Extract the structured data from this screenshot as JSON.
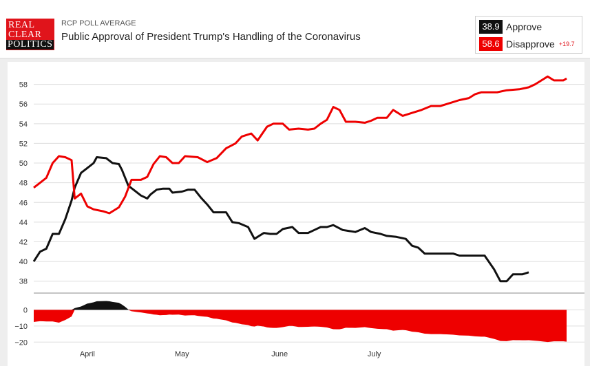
{
  "header": {
    "logo_line1": "REAL",
    "logo_line2": "CLEAR",
    "logo_line3": "POLITICS",
    "kicker": "RCP POLL AVERAGE",
    "title": "Public Approval of President Trump's Handling of the Coronavirus"
  },
  "legend": {
    "approve_value": "38.9",
    "approve_label": "Approve",
    "disapprove_value": "58.6",
    "disapprove_label": "Disapprove",
    "spread": "+19.7"
  },
  "colors": {
    "approve": "#111111",
    "disapprove": "#ee0000",
    "grid": "#dddddd"
  },
  "chart_data": {
    "type": "line",
    "title": "Public Approval of President Trump's Handling of the Coronavirus",
    "x_start": "2020-03-15",
    "x_end": "2020-07-27",
    "x_tick_labels": [
      "April",
      "May",
      "June",
      "July"
    ],
    "x_tick_dates": [
      "2020-04-01",
      "2020-05-01",
      "2020-06-01",
      "2020-07-01"
    ],
    "ylim": [
      37,
      60
    ],
    "yticks": [
      38,
      40,
      42,
      44,
      46,
      48,
      50,
      52,
      54,
      56,
      58
    ],
    "grid": true,
    "legend_position": "top-right",
    "series": [
      {
        "name": "Approve",
        "points": [
          [
            "2020-03-15",
            40.0
          ],
          [
            "2020-03-17",
            41.0
          ],
          [
            "2020-03-19",
            41.3
          ],
          [
            "2020-03-21",
            42.8
          ],
          [
            "2020-03-23",
            42.8
          ],
          [
            "2020-03-25",
            44.3
          ],
          [
            "2020-03-27",
            46.2
          ],
          [
            "2020-03-28",
            47.5
          ],
          [
            "2020-03-30",
            49.0
          ],
          [
            "2020-04-01",
            49.5
          ],
          [
            "2020-04-03",
            50.0
          ],
          [
            "2020-04-04",
            50.6
          ],
          [
            "2020-04-07",
            50.5
          ],
          [
            "2020-04-09",
            50.0
          ],
          [
            "2020-04-11",
            49.9
          ],
          [
            "2020-04-12",
            49.3
          ],
          [
            "2020-04-14",
            47.7
          ],
          [
            "2020-04-16",
            47.2
          ],
          [
            "2020-04-18",
            46.7
          ],
          [
            "2020-04-20",
            46.4
          ],
          [
            "2020-04-21",
            46.8
          ],
          [
            "2020-04-23",
            47.3
          ],
          [
            "2020-04-25",
            47.4
          ],
          [
            "2020-04-27",
            47.4
          ],
          [
            "2020-04-28",
            47.0
          ],
          [
            "2020-05-01",
            47.1
          ],
          [
            "2020-05-03",
            47.3
          ],
          [
            "2020-05-05",
            47.3
          ],
          [
            "2020-05-07",
            46.5
          ],
          [
            "2020-05-09",
            45.8
          ],
          [
            "2020-05-11",
            45.0
          ],
          [
            "2020-05-15",
            45.0
          ],
          [
            "2020-05-17",
            44.0
          ],
          [
            "2020-05-19",
            43.9
          ],
          [
            "2020-05-22",
            43.5
          ],
          [
            "2020-05-24",
            42.3
          ],
          [
            "2020-05-27",
            42.9
          ],
          [
            "2020-05-29",
            42.8
          ],
          [
            "2020-05-31",
            42.8
          ],
          [
            "2020-06-02",
            43.3
          ],
          [
            "2020-06-05",
            43.5
          ],
          [
            "2020-06-07",
            42.9
          ],
          [
            "2020-06-10",
            42.9
          ],
          [
            "2020-06-12",
            43.2
          ],
          [
            "2020-06-14",
            43.5
          ],
          [
            "2020-06-16",
            43.5
          ],
          [
            "2020-06-18",
            43.7
          ],
          [
            "2020-06-21",
            43.2
          ],
          [
            "2020-06-25",
            43.0
          ],
          [
            "2020-06-28",
            43.4
          ],
          [
            "2020-06-30",
            43.0
          ],
          [
            "2020-07-03",
            42.8
          ],
          [
            "2020-07-05",
            42.6
          ],
          [
            "2020-07-08",
            42.5
          ],
          [
            "2020-07-11",
            42.3
          ],
          [
            "2020-07-13",
            41.6
          ],
          [
            "2020-07-15",
            41.4
          ],
          [
            "2020-07-17",
            40.8
          ],
          [
            "2020-07-26",
            40.8
          ],
          [
            "2020-07-28",
            40.6
          ],
          [
            "2020-08-05",
            40.6
          ],
          [
            "2020-08-08",
            39.2
          ],
          [
            "2020-08-10",
            38.0
          ],
          [
            "2020-08-12",
            38.0
          ],
          [
            "2020-08-14",
            38.7
          ],
          [
            "2020-08-17",
            38.7
          ],
          [
            "2020-08-19",
            38.9
          ]
        ]
      },
      {
        "name": "Disapprove",
        "points": [
          [
            "2020-03-15",
            47.5
          ],
          [
            "2020-03-17",
            48.0
          ],
          [
            "2020-03-19",
            48.5
          ],
          [
            "2020-03-21",
            50.0
          ],
          [
            "2020-03-23",
            50.7
          ],
          [
            "2020-03-25",
            50.6
          ],
          [
            "2020-03-27",
            50.3
          ],
          [
            "2020-03-28",
            46.4
          ],
          [
            "2020-03-30",
            46.9
          ],
          [
            "2020-04-01",
            45.6
          ],
          [
            "2020-04-03",
            45.3
          ],
          [
            "2020-04-06",
            45.1
          ],
          [
            "2020-04-08",
            44.9
          ],
          [
            "2020-04-11",
            45.5
          ],
          [
            "2020-04-13",
            46.6
          ],
          [
            "2020-04-15",
            48.3
          ],
          [
            "2020-04-18",
            48.3
          ],
          [
            "2020-04-20",
            48.6
          ],
          [
            "2020-04-22",
            49.9
          ],
          [
            "2020-04-24",
            50.7
          ],
          [
            "2020-04-26",
            50.6
          ],
          [
            "2020-04-28",
            50.0
          ],
          [
            "2020-04-30",
            50.0
          ],
          [
            "2020-05-02",
            50.7
          ],
          [
            "2020-05-06",
            50.6
          ],
          [
            "2020-05-09",
            50.1
          ],
          [
            "2020-05-12",
            50.5
          ],
          [
            "2020-05-15",
            51.5
          ],
          [
            "2020-05-18",
            52.0
          ],
          [
            "2020-05-20",
            52.7
          ],
          [
            "2020-05-23",
            53.0
          ],
          [
            "2020-05-25",
            52.3
          ],
          [
            "2020-05-28",
            53.7
          ],
          [
            "2020-05-30",
            54.0
          ],
          [
            "2020-06-02",
            54.0
          ],
          [
            "2020-06-04",
            53.4
          ],
          [
            "2020-06-07",
            53.5
          ],
          [
            "2020-06-10",
            53.4
          ],
          [
            "2020-06-12",
            53.5
          ],
          [
            "2020-06-14",
            54.0
          ],
          [
            "2020-06-16",
            54.4
          ],
          [
            "2020-06-18",
            55.7
          ],
          [
            "2020-06-20",
            55.4
          ],
          [
            "2020-06-22",
            54.2
          ],
          [
            "2020-06-25",
            54.2
          ],
          [
            "2020-06-28",
            54.1
          ],
          [
            "2020-06-30",
            54.3
          ],
          [
            "2020-07-02",
            54.6
          ],
          [
            "2020-07-05",
            54.6
          ],
          [
            "2020-07-07",
            55.4
          ],
          [
            "2020-07-10",
            54.8
          ],
          [
            "2020-07-13",
            55.1
          ],
          [
            "2020-07-16",
            55.4
          ],
          [
            "2020-07-19",
            55.8
          ],
          [
            "2020-07-22",
            55.8
          ],
          [
            "2020-07-25",
            56.1
          ],
          [
            "2020-07-28",
            56.4
          ],
          [
            "2020-07-31",
            56.6
          ],
          [
            "2020-08-02",
            57.0
          ],
          [
            "2020-08-04",
            57.2
          ],
          [
            "2020-08-09",
            57.2
          ],
          [
            "2020-08-12",
            57.4
          ],
          [
            "2020-08-16",
            57.5
          ],
          [
            "2020-08-19",
            57.7
          ],
          [
            "2020-08-21",
            58.0
          ],
          [
            "2020-08-23",
            58.4
          ],
          [
            "2020-08-25",
            58.8
          ],
          [
            "2020-08-27",
            58.4
          ],
          [
            "2020-08-30",
            58.4
          ],
          [
            "2020-08-31",
            58.6
          ]
        ]
      }
    ],
    "spread": {
      "ylim": [
        -22,
        7
      ],
      "yticks": [
        0,
        -10,
        -20
      ],
      "values_note_hidden": ""
    }
  }
}
